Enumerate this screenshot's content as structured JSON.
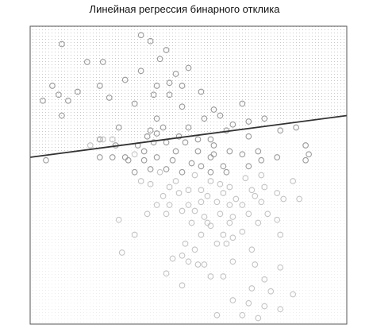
{
  "chart_data": {
    "type": "scatter",
    "title": "Линейная регрессия бинарного отклика",
    "xlabel": "",
    "ylabel": "",
    "xlim": [
      0,
      1
    ],
    "ylim": [
      0,
      1
    ],
    "grid": false,
    "background_classes": [
      {
        "class": 1,
        "region": "above regression line",
        "dot_color": "#c9c9c9"
      },
      {
        "class": 0,
        "region": "below regression line",
        "dot_color": "#ededed"
      }
    ],
    "regression_line": {
      "x": [
        0,
        1
      ],
      "y": [
        0.56,
        0.7
      ],
      "color": "#333333"
    },
    "colors": {
      "high_class": "#9a9a9a",
      "low_class": "#c4c4c4",
      "line": "#333333",
      "frame": "#555555"
    },
    "series": [
      {
        "class": 1,
        "points": [
          [
            0.35,
            0.97
          ],
          [
            0.38,
            0.95
          ],
          [
            0.1,
            0.94
          ],
          [
            0.43,
            0.92
          ],
          [
            0.18,
            0.88
          ],
          [
            0.23,
            0.88
          ],
          [
            0.41,
            0.89
          ],
          [
            0.35,
            0.85
          ],
          [
            0.46,
            0.84
          ],
          [
            0.5,
            0.86
          ],
          [
            0.3,
            0.82
          ],
          [
            0.4,
            0.8
          ],
          [
            0.44,
            0.81
          ],
          [
            0.48,
            0.8
          ],
          [
            0.07,
            0.8
          ],
          [
            0.09,
            0.77
          ],
          [
            0.12,
            0.75
          ],
          [
            0.15,
            0.78
          ],
          [
            0.22,
            0.8
          ],
          [
            0.25,
            0.76
          ],
          [
            0.39,
            0.77
          ],
          [
            0.44,
            0.77
          ],
          [
            0.54,
            0.78
          ],
          [
            0.04,
            0.75
          ],
          [
            0.33,
            0.74
          ],
          [
            0.48,
            0.73
          ],
          [
            0.58,
            0.72
          ],
          [
            0.67,
            0.74
          ],
          [
            0.6,
            0.7
          ],
          [
            0.1,
            0.7
          ],
          [
            0.4,
            0.69
          ],
          [
            0.55,
            0.69
          ],
          [
            0.64,
            0.67
          ],
          [
            0.69,
            0.68
          ],
          [
            0.74,
            0.69
          ],
          [
            0.28,
            0.66
          ],
          [
            0.38,
            0.65
          ],
          [
            0.42,
            0.66
          ],
          [
            0.5,
            0.66
          ],
          [
            0.62,
            0.65
          ],
          [
            0.69,
            0.63
          ],
          [
            0.79,
            0.65
          ],
          [
            0.84,
            0.66
          ],
          [
            0.37,
            0.63
          ],
          [
            0.4,
            0.64
          ],
          [
            0.47,
            0.63
          ],
          [
            0.57,
            0.62
          ],
          [
            0.22,
            0.62
          ],
          [
            0.27,
            0.6
          ],
          [
            0.34,
            0.6
          ],
          [
            0.39,
            0.61
          ],
          [
            0.43,
            0.61
          ],
          [
            0.49,
            0.61
          ],
          [
            0.53,
            0.62
          ],
          [
            0.58,
            0.6
          ],
          [
            0.36,
            0.58
          ],
          [
            0.46,
            0.58
          ],
          [
            0.53,
            0.58
          ],
          [
            0.58,
            0.57
          ],
          [
            0.63,
            0.58
          ],
          [
            0.72,
            0.58
          ],
          [
            0.87,
            0.6
          ],
          [
            0.3,
            0.56
          ],
          [
            0.4,
            0.56
          ],
          [
            0.45,
            0.55
          ],
          [
            0.51,
            0.54
          ],
          [
            0.57,
            0.56
          ],
          [
            0.67,
            0.57
          ],
          [
            0.73,
            0.55
          ],
          [
            0.22,
            0.56
          ],
          [
            0.26,
            0.56
          ],
          [
            0.31,
            0.55
          ],
          [
            0.36,
            0.55
          ],
          [
            0.54,
            0.53
          ],
          [
            0.61,
            0.53
          ],
          [
            0.69,
            0.53
          ],
          [
            0.78,
            0.56
          ],
          [
            0.87,
            0.55
          ],
          [
            0.38,
            0.52
          ],
          [
            0.43,
            0.52
          ],
          [
            0.48,
            0.51
          ],
          [
            0.57,
            0.51
          ],
          [
            0.05,
            0.55
          ],
          [
            0.62,
            0.51
          ],
          [
            0.88,
            0.57
          ],
          [
            0.33,
            0.51
          ]
        ]
      },
      {
        "class": 0,
        "points": [
          [
            0.19,
            0.6
          ],
          [
            0.23,
            0.62
          ],
          [
            0.26,
            0.62
          ],
          [
            0.33,
            0.57
          ],
          [
            0.41,
            0.51
          ],
          [
            0.46,
            0.48
          ],
          [
            0.52,
            0.5
          ],
          [
            0.57,
            0.48
          ],
          [
            0.6,
            0.47
          ],
          [
            0.63,
            0.46
          ],
          [
            0.68,
            0.49
          ],
          [
            0.73,
            0.5
          ],
          [
            0.35,
            0.48
          ],
          [
            0.38,
            0.47
          ],
          [
            0.44,
            0.46
          ],
          [
            0.5,
            0.45
          ],
          [
            0.54,
            0.45
          ],
          [
            0.61,
            0.44
          ],
          [
            0.7,
            0.45
          ],
          [
            0.74,
            0.46
          ],
          [
            0.83,
            0.48
          ],
          [
            0.42,
            0.43
          ],
          [
            0.47,
            0.44
          ],
          [
            0.56,
            0.43
          ],
          [
            0.65,
            0.42
          ],
          [
            0.71,
            0.43
          ],
          [
            0.78,
            0.44
          ],
          [
            0.4,
            0.4
          ],
          [
            0.44,
            0.4
          ],
          [
            0.5,
            0.4
          ],
          [
            0.54,
            0.41
          ],
          [
            0.59,
            0.41
          ],
          [
            0.63,
            0.4
          ],
          [
            0.67,
            0.4
          ],
          [
            0.73,
            0.41
          ],
          [
            0.8,
            0.42
          ],
          [
            0.85,
            0.42
          ],
          [
            0.37,
            0.37
          ],
          [
            0.43,
            0.37
          ],
          [
            0.48,
            0.38
          ],
          [
            0.52,
            0.38
          ],
          [
            0.55,
            0.36
          ],
          [
            0.6,
            0.37
          ],
          [
            0.64,
            0.36
          ],
          [
            0.69,
            0.37
          ],
          [
            0.75,
            0.37
          ],
          [
            0.51,
            0.34
          ],
          [
            0.56,
            0.34
          ],
          [
            0.57,
            0.33
          ],
          [
            0.63,
            0.34
          ],
          [
            0.72,
            0.34
          ],
          [
            0.78,
            0.35
          ],
          [
            0.54,
            0.3
          ],
          [
            0.61,
            0.3
          ],
          [
            0.64,
            0.29
          ],
          [
            0.67,
            0.31
          ],
          [
            0.79,
            0.3
          ],
          [
            0.49,
            0.27
          ],
          [
            0.59,
            0.27
          ],
          [
            0.62,
            0.27
          ],
          [
            0.7,
            0.25
          ],
          [
            0.28,
            0.35
          ],
          [
            0.33,
            0.3
          ],
          [
            0.29,
            0.24
          ],
          [
            0.48,
            0.23
          ],
          [
            0.5,
            0.21
          ],
          [
            0.53,
            0.2
          ],
          [
            0.55,
            0.2
          ],
          [
            0.64,
            0.21
          ],
          [
            0.71,
            0.2
          ],
          [
            0.79,
            0.19
          ],
          [
            0.43,
            0.17
          ],
          [
            0.57,
            0.16
          ],
          [
            0.61,
            0.16
          ],
          [
            0.74,
            0.15
          ],
          [
            0.48,
            0.13
          ],
          [
            0.7,
            0.12
          ],
          [
            0.76,
            0.11
          ],
          [
            0.83,
            0.1
          ],
          [
            0.64,
            0.08
          ],
          [
            0.69,
            0.07
          ],
          [
            0.74,
            0.06
          ],
          [
            0.79,
            0.05
          ],
          [
            0.59,
            0.03
          ],
          [
            0.67,
            0.03
          ],
          [
            0.72,
            0.02
          ],
          [
            0.45,
            0.22
          ],
          [
            0.52,
            0.25
          ]
        ]
      }
    ]
  }
}
